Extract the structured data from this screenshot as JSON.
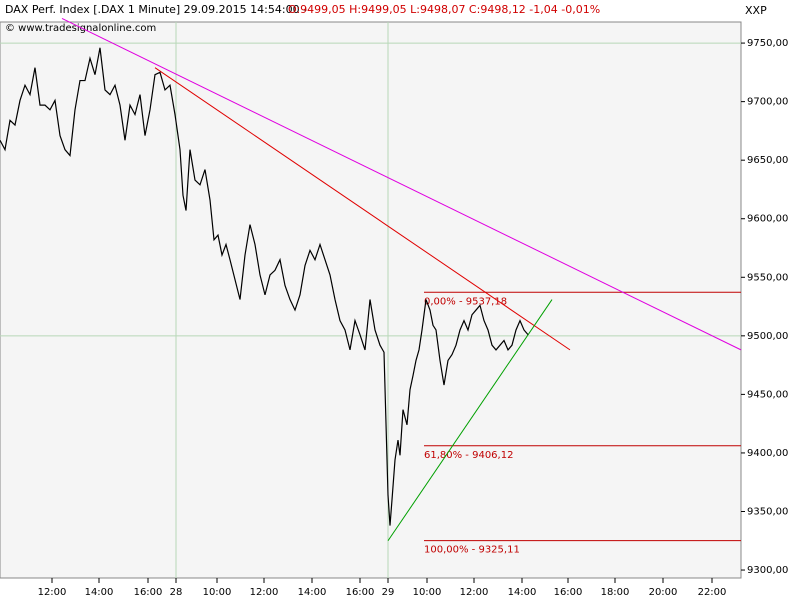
{
  "chart_data": {
    "type": "line",
    "title": "DAX Perf. Index [.DAX  1 Minute] 29.09.2015 14:54:00 -",
    "subtitle": "O:9499,05 H:9499,05 L:9498,07 C:9498,12 -1,04 -0,01%",
    "source": "© www.tradesignalonline.com",
    "corner_label": "XXP",
    "xlim": [
      0,
      370.5
    ],
    "ylim": [
      9293.2,
      9768
    ],
    "xticks": [
      {
        "value": 26,
        "label": "12:00"
      },
      {
        "value": 49.5,
        "label": "14:00"
      },
      {
        "value": 74,
        "label": "16:00"
      },
      {
        "value": 88,
        "label": "28"
      },
      {
        "value": 108.5,
        "label": "10:00"
      },
      {
        "value": 132,
        "label": "12:00"
      },
      {
        "value": 156,
        "label": "14:00"
      },
      {
        "value": 180,
        "label": "16:00"
      },
      {
        "value": 194,
        "label": "29"
      },
      {
        "value": 213.5,
        "label": "10:00"
      },
      {
        "value": 237,
        "label": "12:00"
      },
      {
        "value": 261,
        "label": "14:00"
      },
      {
        "value": 284,
        "label": "16:00"
      },
      {
        "value": 307.5,
        "label": "18:00"
      },
      {
        "value": 331.5,
        "label": "20:00"
      },
      {
        "value": 356,
        "label": "22:00"
      }
    ],
    "yticks": [
      {
        "value": 9300,
        "label": "9300,00"
      },
      {
        "value": 9350,
        "label": "9350,00"
      },
      {
        "value": 9400,
        "label": "9400,00"
      },
      {
        "value": 9450,
        "label": "9450,00"
      },
      {
        "value": 9500,
        "label": "9500,00"
      },
      {
        "value": 9550,
        "label": "9550,00"
      },
      {
        "value": 9600,
        "label": "9600,00"
      },
      {
        "value": 9650,
        "label": "9650,00"
      },
      {
        "value": 9700,
        "label": "9700,00"
      },
      {
        "value": 9750,
        "label": "9750,00"
      }
    ],
    "xgrid": [
      88,
      194
    ],
    "ygrid": [
      9750,
      9500
    ],
    "x": [
      0,
      2.5,
      5,
      7.5,
      10,
      12.5,
      15,
      17.5,
      20,
      22.5,
      25,
      27.5,
      30,
      32.5,
      35,
      37.5,
      40,
      42.5,
      45,
      47.5,
      50,
      52.5,
      55,
      57.5,
      60,
      62.5,
      65,
      67.5,
      70,
      72.5,
      75,
      77.5,
      80,
      82.5,
      85,
      87.5,
      89,
      90,
      91.5,
      93,
      95,
      97.5,
      100,
      102.5,
      105,
      107,
      109,
      111,
      113,
      115,
      117.5,
      120,
      122.5,
      125,
      127.5,
      130,
      132.5,
      135,
      137.5,
      140,
      142.5,
      145,
      147.5,
      150,
      152.5,
      155,
      157.5,
      160,
      162.5,
      165,
      167.5,
      170,
      172.5,
      175,
      177.5,
      180,
      182.5,
      185,
      187.5,
      190,
      192,
      194,
      195,
      196,
      197.5,
      199,
      200,
      201.5,
      203.5,
      205,
      206.5,
      208,
      209.5,
      211,
      213,
      215,
      216.5,
      218,
      220,
      222,
      224,
      226,
      228,
      230,
      232,
      234,
      236,
      238,
      240,
      242,
      244,
      246,
      248,
      250,
      252,
      254,
      256,
      258,
      260,
      262,
      264
    ],
    "series": [
      {
        "name": "DAX",
        "color": "#000000",
        "values": [
          9667,
          9659,
          9684,
          9680,
          9701,
          9714,
          9706,
          9729,
          9697,
          9697,
          9693,
          9701,
          9671,
          9659,
          9654,
          9693,
          9718,
          9718,
          9737,
          9723,
          9746,
          9710,
          9706,
          9714,
          9697,
          9667,
          9697,
          9689,
          9706,
          9671,
          9693,
          9723,
          9725,
          9710,
          9714,
          9689,
          9671,
          9659,
          9620,
          9607,
          9659,
          9633,
          9629,
          9642,
          9616,
          9582,
          9586,
          9569,
          9578,
          9565,
          9548,
          9531,
          9569,
          9595,
          9578,
          9552,
          9535,
          9552,
          9556,
          9565,
          9543,
          9531,
          9522,
          9535,
          9560,
          9573,
          9565,
          9578,
          9565,
          9552,
          9531,
          9513,
          9505,
          9488,
          9513,
          9501,
          9488,
          9531,
          9505,
          9492,
          9486,
          9364,
          9338,
          9360,
          9394,
          9411,
          9398,
          9437,
          9424,
          9454,
          9466,
          9479,
          9488,
          9505,
          9531,
          9522,
          9509,
          9505,
          9479,
          9458,
          9479,
          9484,
          9492,
          9505,
          9513,
          9505,
          9518,
          9522,
          9526,
          9513,
          9505,
          9492,
          9488,
          9492,
          9496,
          9488,
          9492,
          9505,
          9513,
          9505,
          9501
        ]
      }
    ],
    "trendlines": [
      {
        "color": "#e000e0",
        "x": [
          31,
          370.5
        ],
        "values": [
          9771,
          9488
        ]
      },
      {
        "color": "#e00000",
        "x": [
          77.5,
          285
        ],
        "values": [
          9729,
          9488
        ]
      },
      {
        "color": "#00a000",
        "x": [
          194,
          276
        ],
        "values": [
          9325,
          9531
        ]
      }
    ],
    "levels": {
      "color": "#c00000",
      "start": 212,
      "items": [
        {
          "value": 9537.18,
          "label": "0,00% - 9537,18"
        },
        {
          "value": 9406.12,
          "label": "61,80% - 9406,12"
        },
        {
          "value": 9325.11,
          "label": "100,00% - 9325,11"
        }
      ]
    }
  }
}
